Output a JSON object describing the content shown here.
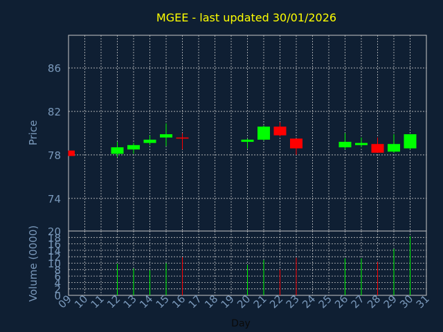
{
  "chart_data": [
    {
      "type": "candlestick",
      "title": "MGEE - last updated 30/01/2026",
      "ylabel": "Price",
      "xlabel": "Day",
      "ylim": [
        71,
        89
      ],
      "yticks": [
        74,
        78,
        82,
        86
      ],
      "grid": true,
      "x": [
        "09",
        "10",
        "11",
        "12",
        "13",
        "14",
        "15",
        "16",
        "17",
        "18",
        "19",
        "20",
        "21",
        "22",
        "23",
        "24",
        "25",
        "26",
        "27",
        "28",
        "29",
        "30",
        "31"
      ],
      "candles": [
        {
          "day": "09",
          "open": 78.4,
          "close": 77.9,
          "high": 78.4,
          "low": 77.9
        },
        {
          "day": "12",
          "open": 78.1,
          "close": 78.7,
          "high": 79.2,
          "low": 77.8
        },
        {
          "day": "13",
          "open": 78.5,
          "close": 78.9,
          "high": 79.1,
          "low": 78.1
        },
        {
          "day": "14",
          "open": 79.1,
          "close": 79.4,
          "high": 79.8,
          "low": 78.9
        },
        {
          "day": "15",
          "open": 79.6,
          "close": 79.9,
          "high": 80.9,
          "low": 78.8
        },
        {
          "day": "16",
          "open": 79.6,
          "close": 79.5,
          "high": 80.0,
          "low": 78.5
        },
        {
          "day": "20",
          "open": 79.2,
          "close": 79.4,
          "high": 79.5,
          "low": 78.6
        },
        {
          "day": "21",
          "open": 79.4,
          "close": 80.6,
          "high": 80.7,
          "low": 79.3
        },
        {
          "day": "22",
          "open": 80.6,
          "close": 79.8,
          "high": 81.0,
          "low": 79.7
        },
        {
          "day": "23",
          "open": 79.5,
          "close": 78.6,
          "high": 79.5,
          "low": 78.0
        },
        {
          "day": "26",
          "open": 78.7,
          "close": 79.2,
          "high": 80.0,
          "low": 78.5
        },
        {
          "day": "27",
          "open": 78.9,
          "close": 79.1,
          "high": 79.6,
          "low": 78.7
        },
        {
          "day": "28",
          "open": 79.0,
          "close": 78.2,
          "high": 79.6,
          "low": 78.2
        },
        {
          "day": "29",
          "open": 78.3,
          "close": 79.0,
          "high": 79.9,
          "low": 78.2
        },
        {
          "day": "30",
          "open": 78.6,
          "close": 79.9,
          "high": 79.9,
          "low": 78.5
        }
      ],
      "colors": {
        "up": "#00ff00",
        "down": "#ff0000"
      }
    },
    {
      "type": "bar",
      "ylabel": "Volume (0000)",
      "ylim": [
        0,
        20
      ],
      "yticks": [
        0,
        2,
        4,
        6,
        8,
        10,
        12,
        14,
        16,
        18,
        20
      ],
      "grid": true,
      "bars": [
        {
          "day": "09",
          "value": 0,
          "direction": "down"
        },
        {
          "day": "12",
          "value": 9.8,
          "direction": "up"
        },
        {
          "day": "13",
          "value": 8.4,
          "direction": "up"
        },
        {
          "day": "14",
          "value": 7.8,
          "direction": "up"
        },
        {
          "day": "15",
          "value": 10.0,
          "direction": "up"
        },
        {
          "day": "16",
          "value": 11.9,
          "direction": "down"
        },
        {
          "day": "20",
          "value": 9.5,
          "direction": "up"
        },
        {
          "day": "21",
          "value": 11.0,
          "direction": "up"
        },
        {
          "day": "22",
          "value": 8.0,
          "direction": "down"
        },
        {
          "day": "23",
          "value": 11.7,
          "direction": "down"
        },
        {
          "day": "26",
          "value": 11.5,
          "direction": "up"
        },
        {
          "day": "27",
          "value": 11.5,
          "direction": "up"
        },
        {
          "day": "28",
          "value": 10.4,
          "direction": "down"
        },
        {
          "day": "29",
          "value": 14.5,
          "direction": "up"
        },
        {
          "day": "30",
          "value": 18.4,
          "direction": "up"
        }
      ]
    }
  ],
  "colors": {
    "background": "#0f1f33",
    "title": "#ffff00",
    "axis_label": "#7a99bb",
    "tick_label": "#7a99bb",
    "grid": "#c8c8c8",
    "frame": "#c8c8c8"
  }
}
